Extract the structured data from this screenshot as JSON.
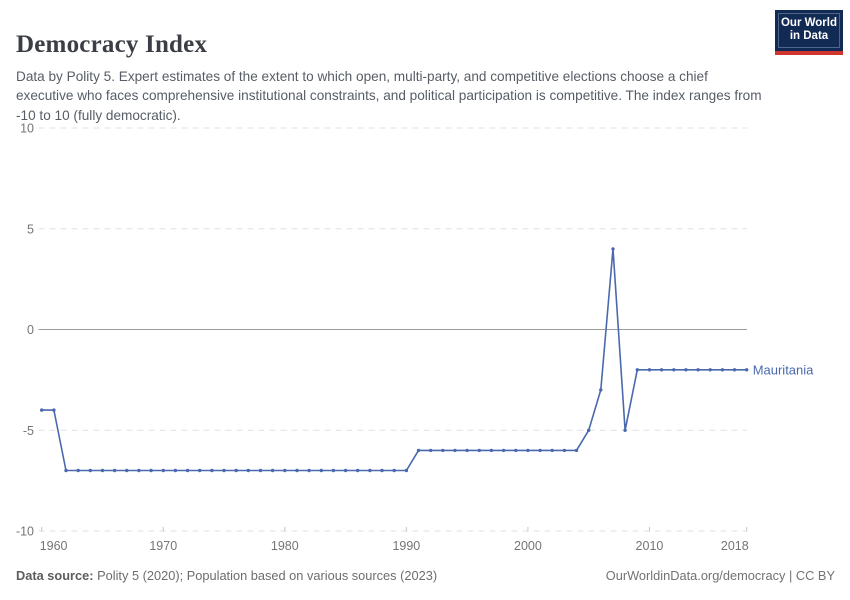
{
  "header": {
    "title": "Democracy Index",
    "subtitle": "Data by Polity 5. Expert estimates of the extent to which open, multi-party, and competitive elections choose a chief executive who faces comprehensive institutional constraints, and political participation is competitive. The index ranges from -10 to 10 (fully democratic)."
  },
  "logo": {
    "line1": "Our World",
    "line2": "in Data",
    "bg_color": "#122b54",
    "bar_color": "#cf352e"
  },
  "footer": {
    "data_source_label": "Data source:",
    "data_source_text": "Polity 5 (2020); Population based on various sources (2023)",
    "credit": "OurWorldinData.org/democracy | CC BY"
  },
  "colors": {
    "grid": "#e1e1e1",
    "zero_line": "#9b9b9b",
    "axis_label": "#757575",
    "tick_mark": "#c4c4c4",
    "line": "#4a69ad"
  },
  "chart_data": {
    "type": "line",
    "title": "Democracy Index",
    "xlabel": "",
    "ylabel": "",
    "ylim": [
      -10,
      10
    ],
    "y_ticks": [
      10,
      5,
      0,
      -5,
      -10
    ],
    "x_ticks": [
      1960,
      1970,
      1980,
      1990,
      2000,
      2010,
      2018
    ],
    "x_range": [
      1960,
      2018
    ],
    "grid": "dashed horizontal gridlines, solid zero line",
    "legend_position": "end-of-line label",
    "series": [
      {
        "name": "Mauritania",
        "color": "#4a69ad",
        "years": [
          1960,
          1961,
          1962,
          1963,
          1964,
          1965,
          1966,
          1967,
          1968,
          1969,
          1970,
          1971,
          1972,
          1973,
          1974,
          1975,
          1976,
          1977,
          1978,
          1979,
          1980,
          1981,
          1982,
          1983,
          1984,
          1985,
          1986,
          1987,
          1988,
          1989,
          1990,
          1991,
          1992,
          1993,
          1994,
          1995,
          1996,
          1997,
          1998,
          1999,
          2000,
          2001,
          2002,
          2003,
          2004,
          2005,
          2006,
          2007,
          2008,
          2009,
          2010,
          2011,
          2012,
          2013,
          2014,
          2015,
          2016,
          2017,
          2018
        ],
        "values": [
          -4,
          -4,
          -7,
          -7,
          -7,
          -7,
          -7,
          -7,
          -7,
          -7,
          -7,
          -7,
          -7,
          -7,
          -7,
          -7,
          -7,
          -7,
          -7,
          -7,
          -7,
          -7,
          -7,
          -7,
          -7,
          -7,
          -7,
          -7,
          -7,
          -7,
          -7,
          -6,
          -6,
          -6,
          -6,
          -6,
          -6,
          -6,
          -6,
          -6,
          -6,
          -6,
          -6,
          -6,
          -6,
          -5,
          -3,
          4,
          -5,
          -2,
          -2,
          -2,
          -2,
          -2,
          -2,
          -2,
          -2,
          -2,
          -2
        ]
      }
    ]
  }
}
